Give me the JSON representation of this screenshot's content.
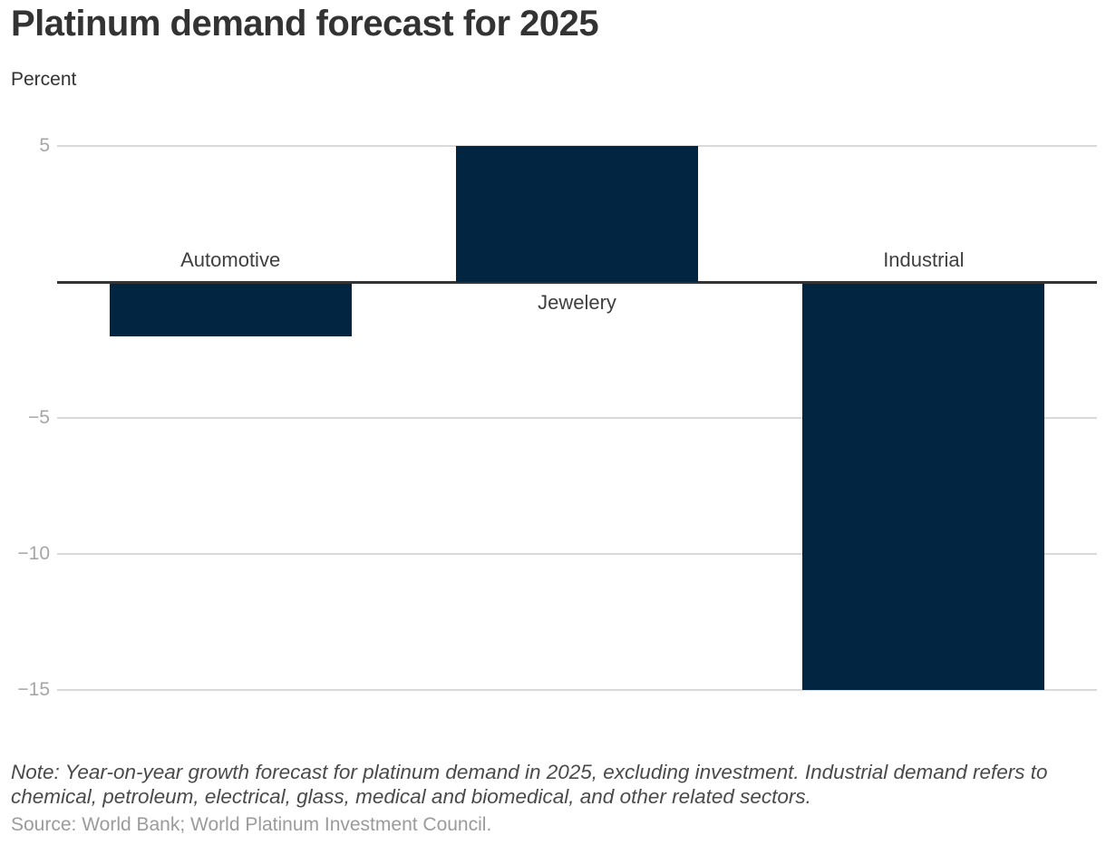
{
  "header": {
    "title": "Platinum demand forecast for 2025",
    "unit_label": "Percent"
  },
  "chart_data": {
    "type": "bar",
    "title": "Platinum demand forecast for 2025",
    "xlabel": "",
    "ylabel": "Percent",
    "categories": [
      "Automotive",
      "Jewelery",
      "Industrial"
    ],
    "values": [
      -2,
      5,
      -15
    ],
    "ylim": [
      -17,
      6
    ],
    "yticks": [
      5,
      -5,
      -10,
      -15
    ],
    "ytick_labels": [
      "5",
      "−5",
      "−10",
      "−15"
    ],
    "grid": true,
    "legend": "none",
    "bar_color": "#022642",
    "grid_color": "#d9d9d9",
    "zero_axis_color": "#333333"
  },
  "footer": {
    "note": "Note: Year-on-year growth forecast for platinum demand in 2025, excluding investment. Industrial demand refers to chemical, petroleum, electrical, glass, medical and biomedical, and other related sectors.",
    "source": "Source: World Bank; World Platinum Investment Council."
  }
}
